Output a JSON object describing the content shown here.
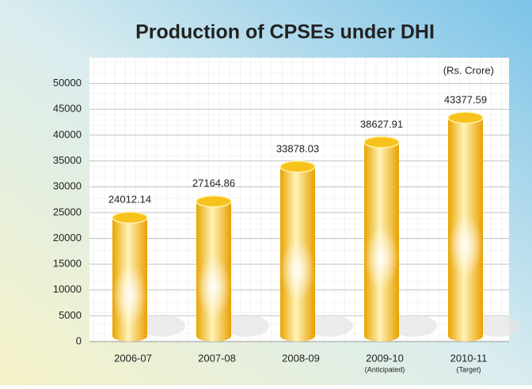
{
  "chart_data": {
    "type": "bar",
    "title": "Production of CPSEs under DHI",
    "annotation": "(Rs. Crore)",
    "categories": [
      "2006-07",
      "2007-08",
      "2008-09",
      "2009-10",
      "2010-11"
    ],
    "category_notes": [
      null,
      null,
      null,
      "(Anticipated)",
      "(Target)"
    ],
    "values": [
      24012.14,
      27164.86,
      33878.03,
      38627.91,
      43377.59
    ],
    "color": "#f5b800",
    "ylim": [
      0,
      55000
    ],
    "yticks": [
      0,
      5000,
      10000,
      15000,
      20000,
      25000,
      30000,
      35000,
      40000,
      45000,
      50000
    ],
    "grid": true
  }
}
